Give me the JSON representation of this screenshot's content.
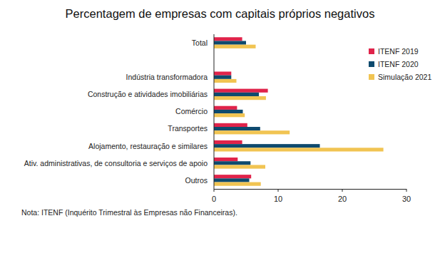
{
  "chart_data": {
    "type": "bar",
    "orientation": "horizontal",
    "title": "Percentagem de empresas com capitais próprios negativos",
    "note": "Nota: ITENF (Inquérito Trimestral às Empresas não Financeiras).",
    "categories": [
      "Total",
      null,
      "Indústria transformadora",
      "Construção e atividades imobiliárias",
      "Comércio",
      "Transportes",
      "Alojamento, restauração e similares",
      "Ativ. administrativas, de consultoria e serviços de apoio",
      "Outros"
    ],
    "series": [
      {
        "name": "ITENF 2019",
        "color": "#e0234a",
        "values": [
          4.4,
          null,
          2.7,
          8.4,
          3.6,
          5.2,
          4.4,
          3.7,
          5.8
        ]
      },
      {
        "name": "ITENF 2020",
        "color": "#0e4a6e",
        "values": [
          5.0,
          null,
          2.7,
          7.0,
          4.5,
          7.2,
          16.5,
          5.7,
          5.5
        ]
      },
      {
        "name": "Simulação 2021",
        "color": "#f1c452",
        "values": [
          6.5,
          null,
          3.5,
          8.1,
          4.8,
          11.8,
          26.4,
          8.0,
          7.3
        ]
      }
    ],
    "xlim": [
      0,
      30
    ],
    "xticks": [
      0,
      10,
      20,
      30
    ],
    "grid": false,
    "legend": "upper-right"
  }
}
